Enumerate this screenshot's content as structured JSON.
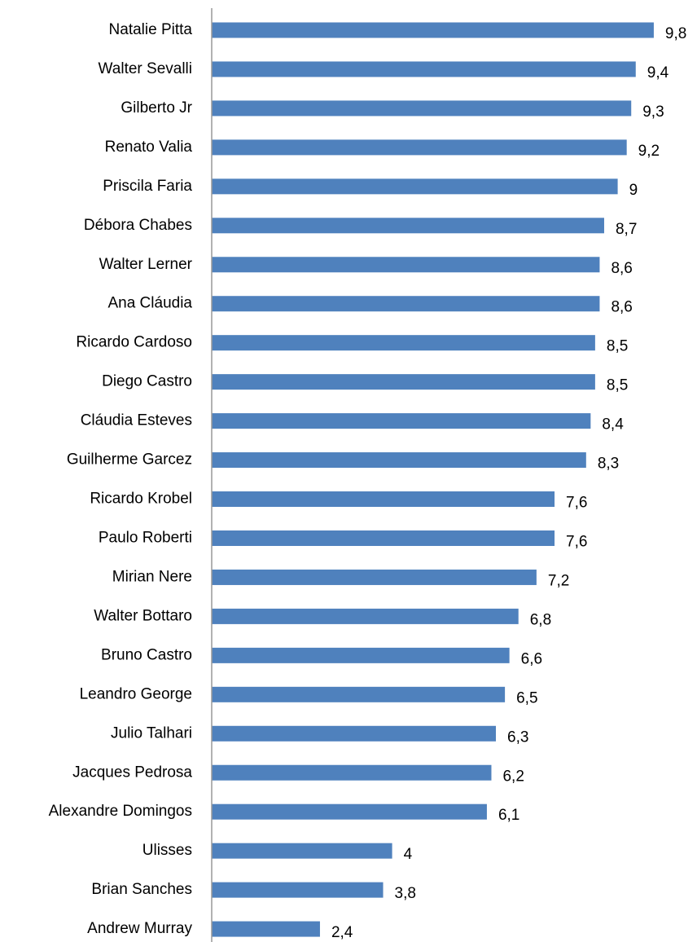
{
  "chart_data": {
    "type": "bar",
    "orientation": "horizontal",
    "color": "#4f81bd",
    "categories": [
      "Natalie Pitta",
      "Walter Sevalli",
      "Gilberto Jr",
      "Renato Valia",
      "Priscila Faria",
      "Débora Chabes",
      "Walter Lerner",
      "Ana Cláudia",
      "Ricardo Cardoso",
      "Diego Castro",
      "Cláudia Esteves",
      "Guilherme Garcez",
      "Ricardo Krobel",
      "Paulo Roberti",
      "Mirian Nere",
      "Walter Bottaro",
      "Bruno Castro",
      "Leandro George",
      "Julio Talhari",
      "Jacques Pedrosa",
      "Alexandre Domingos",
      "Ulisses",
      "Brian Sanches",
      "Andrew Murray"
    ],
    "values": [
      9.8,
      9.4,
      9.3,
      9.2,
      9,
      8.7,
      8.6,
      8.6,
      8.5,
      8.5,
      8.4,
      8.3,
      7.6,
      7.6,
      7.2,
      6.8,
      6.6,
      6.5,
      6.3,
      6.2,
      6.1,
      4,
      3.8,
      2.4
    ],
    "value_labels": [
      "9,8",
      "9,4",
      "9,3",
      "9,2",
      "9",
      "8,7",
      "8,6",
      "8,6",
      "8,5",
      "8,5",
      "8,4",
      "8,3",
      "7,6",
      "7,6",
      "7,2",
      "6,8",
      "6,6",
      "6,5",
      "6,3",
      "6,2",
      "6,1",
      "4",
      "3,8",
      "2,4"
    ]
  }
}
